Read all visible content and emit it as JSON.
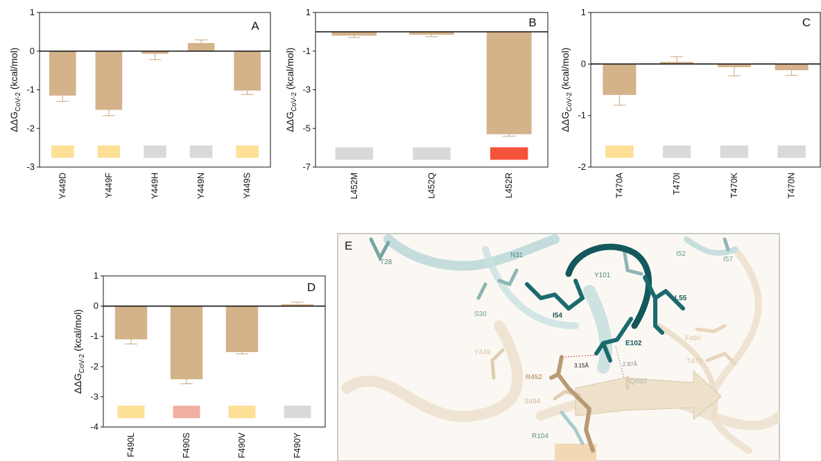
{
  "figure": {
    "panel_e_letter": "E"
  },
  "chart_data": [
    {
      "type": "bar",
      "panel": "A",
      "ylabel_prefix": "ΔΔG",
      "ylabel_sub": "CoV-2",
      "ylabel_unit": " (kcal/mol)",
      "ylim": [
        -3,
        1
      ],
      "yticks": [
        -3,
        -2,
        -1,
        0,
        1
      ],
      "categories": [
        "Y449D",
        "Y449F",
        "Y449H",
        "Y449N",
        "Y449S"
      ],
      "values": [
        -1.15,
        -1.52,
        -0.07,
        0.21,
        -1.02
      ],
      "errors": [
        0.15,
        0.15,
        0.15,
        0.08,
        0.1
      ],
      "indicator_colors": [
        "#fddf96",
        "#fddf96",
        "#d9d9d9",
        "#d9d9d9",
        "#fddf96"
      ],
      "bar_color": "#d4b28a",
      "indicator_level": -2.6
    },
    {
      "type": "bar",
      "panel": "B",
      "ylabel_prefix": "ΔΔG",
      "ylabel_sub": "CoV-2",
      "ylabel_unit": " (kcal/mol)",
      "ylim": [
        -7,
        1
      ],
      "yticks": [
        -7,
        -5,
        -3,
        -1,
        1
      ],
      "categories": [
        "L452M",
        "L452Q",
        "L452R"
      ],
      "values": [
        -0.2,
        -0.15,
        -5.3
      ],
      "errors": [
        0.1,
        0.1,
        0.1
      ],
      "indicator_colors": [
        "#d9d9d9",
        "#d9d9d9",
        "#f5523a"
      ],
      "bar_color": "#d4b28a",
      "indicator_level": -6.3
    },
    {
      "type": "bar",
      "panel": "C",
      "ylabel_prefix": "ΔΔG",
      "ylabel_sub": "CoV-2",
      "ylabel_unit": " (kcal/mol)",
      "ylim": [
        -2,
        1
      ],
      "yticks": [
        -2,
        -1,
        0,
        1
      ],
      "categories": [
        "T470A",
        "T470I",
        "T470K",
        "T470N"
      ],
      "values": [
        -0.6,
        0.04,
        -0.06,
        -0.12
      ],
      "errors": [
        0.2,
        0.1,
        0.17,
        0.1
      ],
      "indicator_colors": [
        "#fddf96",
        "#d9d9d9",
        "#d9d9d9",
        "#d9d9d9"
      ],
      "bar_color": "#d4b28a",
      "indicator_level": -1.7
    },
    {
      "type": "bar",
      "panel": "D",
      "ylabel_prefix": "ΔΔG",
      "ylabel_sub": "CoV-2",
      "ylabel_unit": " (kcal/mol)",
      "ylim": [
        -4,
        1
      ],
      "yticks": [
        -4,
        -3,
        -2,
        -1,
        0,
        1
      ],
      "categories": [
        "F490L",
        "F490S",
        "F490V",
        "F490Y"
      ],
      "values": [
        -1.1,
        -2.42,
        -1.52,
        0.06
      ],
      "errors": [
        0.15,
        0.15,
        0.06,
        0.07
      ],
      "indicator_colors": [
        "#fddf96",
        "#f1b0a1",
        "#fddf96",
        "#d9d9d9"
      ],
      "bar_color": "#d4b28a",
      "indicator_level": -3.5
    }
  ],
  "molecule": {
    "labels": [
      "T28",
      "N31",
      "S30",
      "Y101",
      "I52",
      "I57",
      "L55",
      "I54",
      "E102",
      "F490",
      "T470",
      "Y449",
      "R452",
      "Q493",
      "S494",
      "R104"
    ],
    "distances": [
      "3.15Å",
      "2.87Å"
    ]
  }
}
